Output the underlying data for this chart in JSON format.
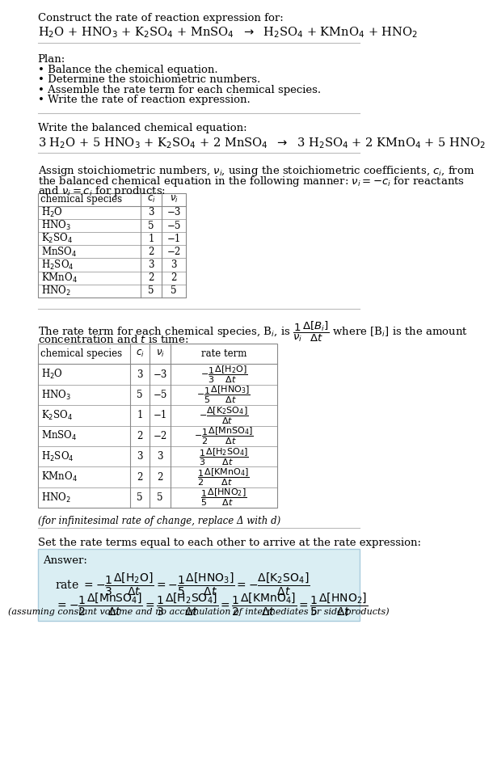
{
  "title_line1": "Construct the rate of reaction expression for:",
  "reaction_unbalanced": "H$_2$O + HNO$_3$ + K$_2$SO$_4$ + MnSO$_4$  $\\rightarrow$  H$_2$SO$_4$ + KMnO$_4$ + HNO$_2$",
  "plan_header": "Plan:",
  "plan_items": [
    "• Balance the chemical equation.",
    "• Determine the stoichiometric numbers.",
    "• Assemble the rate term for each chemical species.",
    "• Write the rate of reaction expression."
  ],
  "balanced_header": "Write the balanced chemical equation:",
  "reaction_balanced": "3 H$_2$O + 5 HNO$_3$ + K$_2$SO$_4$ + 2 MnSO$_4$  $\\rightarrow$  3 H$_2$SO$_4$ + 2 KMnO$_4$ + 5 HNO$_2$",
  "assign_text1": "Assign stoichiometric numbers, $\\nu_i$, using the stoichiometric coefficients, $c_i$, from",
  "assign_text2": "the balanced chemical equation in the following manner: $\\nu_i = -c_i$ for reactants",
  "assign_text3": "and $\\nu_i = c_i$ for products:",
  "table1_headers": [
    "chemical species",
    "$c_i$",
    "$\\nu_i$"
  ],
  "table1_data": [
    [
      "H$_2$O",
      "3",
      "−3"
    ],
    [
      "HNO$_3$",
      "5",
      "−5"
    ],
    [
      "K$_2$SO$_4$",
      "1",
      "−1"
    ],
    [
      "MnSO$_4$",
      "2",
      "−2"
    ],
    [
      "H$_2$SO$_4$",
      "3",
      "3"
    ],
    [
      "KMnO$_4$",
      "2",
      "2"
    ],
    [
      "HNO$_2$",
      "5",
      "5"
    ]
  ],
  "rate_text1": "The rate term for each chemical species, B$_i$, is $\\dfrac{1}{\\nu_i}\\dfrac{\\Delta[B_i]}{\\Delta t}$ where [B$_i$] is the amount",
  "rate_text2": "concentration and $t$ is time:",
  "table2_headers": [
    "chemical species",
    "$c_i$",
    "$\\nu_i$",
    "rate term"
  ],
  "table2_data": [
    [
      "H$_2$O",
      "3",
      "−3",
      "$-\\dfrac{1}{3}\\dfrac{\\Delta[\\mathrm{H_2O}]}{\\Delta t}$"
    ],
    [
      "HNO$_3$",
      "5",
      "−5",
      "$-\\dfrac{1}{5}\\dfrac{\\Delta[\\mathrm{HNO_3}]}{\\Delta t}$"
    ],
    [
      "K$_2$SO$_4$",
      "1",
      "−1",
      "$-\\dfrac{\\Delta[\\mathrm{K_2SO_4}]}{\\Delta t}$"
    ],
    [
      "MnSO$_4$",
      "2",
      "−2",
      "$-\\dfrac{1}{2}\\dfrac{\\Delta[\\mathrm{MnSO_4}]}{\\Delta t}$"
    ],
    [
      "H$_2$SO$_4$",
      "3",
      "3",
      "$\\dfrac{1}{3}\\dfrac{\\Delta[\\mathrm{H_2SO_4}]}{\\Delta t}$"
    ],
    [
      "KMnO$_4$",
      "2",
      "2",
      "$\\dfrac{1}{2}\\dfrac{\\Delta[\\mathrm{KMnO_4}]}{\\Delta t}$"
    ],
    [
      "HNO$_2$",
      "5",
      "5",
      "$\\dfrac{1}{5}\\dfrac{\\Delta[\\mathrm{HNO_2}]}{\\Delta t}$"
    ]
  ],
  "infinitesimal_note": "(for infinitesimal rate of change, replace Δ with d)",
  "set_equal_text": "Set the rate terms equal to each other to arrive at the rate expression:",
  "answer_label": "Answer:",
  "answer_box_color": "#daeef3",
  "answer_line1": "rate $= -\\dfrac{1}{3}\\dfrac{\\Delta[\\mathrm{H_2O}]}{\\Delta t} = -\\dfrac{1}{5}\\dfrac{\\Delta[\\mathrm{HNO_3}]}{\\Delta t} = -\\dfrac{\\Delta[\\mathrm{K_2SO_4}]}{\\Delta t}$",
  "answer_line2": "$= -\\dfrac{1}{2}\\dfrac{\\Delta[\\mathrm{MnSO_4}]}{\\Delta t} = \\dfrac{1}{3}\\dfrac{\\Delta[\\mathrm{H_2SO_4}]}{\\Delta t} = \\dfrac{1}{2}\\dfrac{\\Delta[\\mathrm{KMnO_4}]}{\\Delta t} = \\dfrac{1}{5}\\dfrac{\\Delta[\\mathrm{HNO_2}]}{\\Delta t}$",
  "answer_note": "(assuming constant volume and no accumulation of intermediates or side products)",
  "bg_color": "#ffffff",
  "text_color": "#000000",
  "table_border_color": "#999999",
  "font_size": 9.5
}
